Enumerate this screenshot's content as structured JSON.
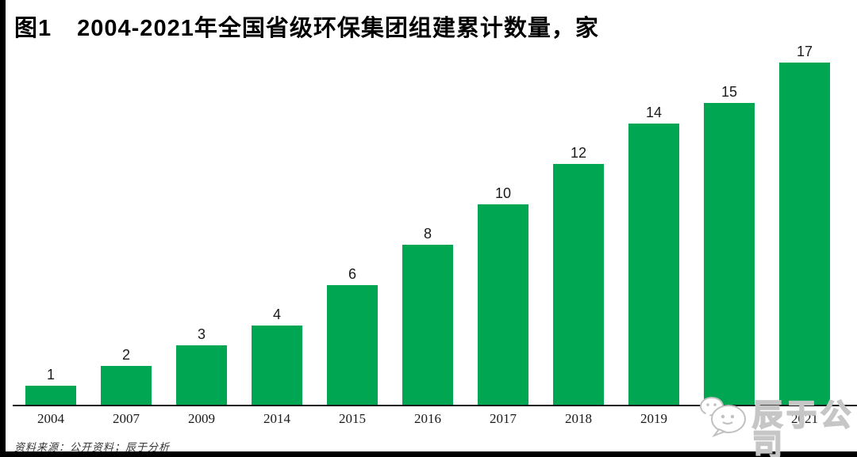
{
  "figure": {
    "label": "图1",
    "title": "2004-2021年全国省级环保集团组建累计数量，家"
  },
  "chart_data": {
    "type": "bar",
    "categories": [
      "2004",
      "2007",
      "2009",
      "2014",
      "2015",
      "2016",
      "2017",
      "2018",
      "2019",
      "2020",
      "2021"
    ],
    "values": [
      1,
      2,
      3,
      4,
      6,
      8,
      10,
      12,
      14,
      15,
      17
    ],
    "title": "2004-2021年全国省级环保集团组建累计数量，家",
    "unit": "家",
    "bar_color": "#00a651",
    "ylim": [
      0,
      17
    ],
    "grid": false,
    "legend": "none",
    "value_labels": "above bars",
    "category_label_hidden_by_watermark": "2020"
  },
  "footer": {
    "source_note": "资料来源：公开资料；辰于分析"
  },
  "watermark": {
    "text": "辰于公司",
    "icon": "wechat-chat-bubbles-icon",
    "color": "#c6c6c6"
  }
}
